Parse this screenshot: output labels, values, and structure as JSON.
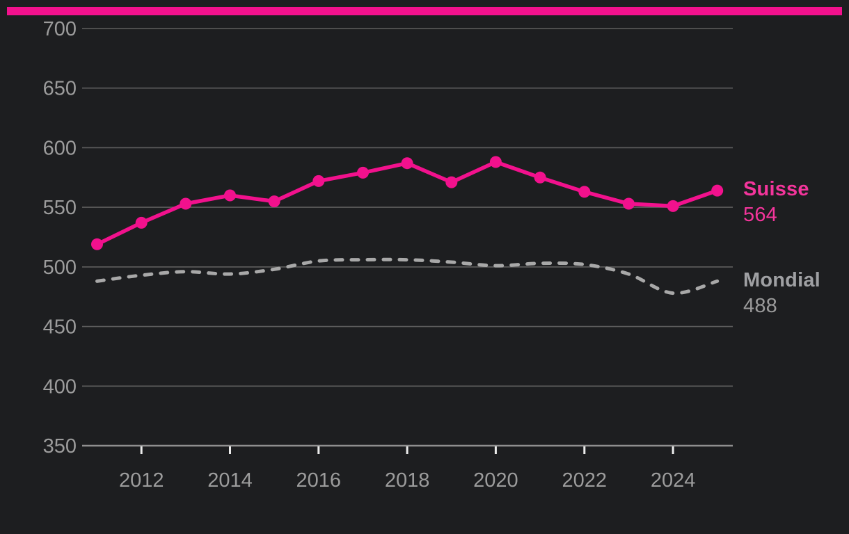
{
  "page": {
    "background": "#1d1e20",
    "accent_bar_color": "#f2118d"
  },
  "chart_data": {
    "type": "line",
    "x": [
      2011,
      2012,
      2013,
      2014,
      2015,
      2016,
      2017,
      2018,
      2019,
      2020,
      2021,
      2022,
      2023,
      2024,
      2025
    ],
    "series": [
      {
        "name": "Suisse",
        "color": "#f2118d",
        "label_color": "#f4359c",
        "line_style": "solid",
        "markers": true,
        "values": [
          519,
          537,
          553,
          560,
          555,
          572,
          579,
          587,
          571,
          588,
          575,
          563,
          553,
          551,
          564
        ],
        "end_label_value": "564"
      },
      {
        "name": "Mondial",
        "color": "#a8a8a8",
        "label_color": "#9fa0a3",
        "line_style": "dashed",
        "markers": false,
        "values": [
          488,
          493,
          496,
          494,
          498,
          505,
          506,
          506,
          504,
          501,
          503,
          502,
          494,
          478,
          488
        ],
        "end_label_value": "488"
      }
    ],
    "title": "",
    "xlabel": "",
    "ylabel": "",
    "ylim": [
      350,
      700
    ],
    "yticks": [
      350,
      400,
      450,
      500,
      550,
      600,
      650,
      700
    ],
    "xticks": [
      2012,
      2014,
      2016,
      2018,
      2020,
      2022,
      2024
    ],
    "grid": "horizontal-only",
    "legend_position": "right-of-line-ends",
    "axis_text_color": "#9c9c9c",
    "gridline_color": "#5e5e5e",
    "baseline_color": "#8f8f8f",
    "tick_mark_color": "#ececec"
  }
}
